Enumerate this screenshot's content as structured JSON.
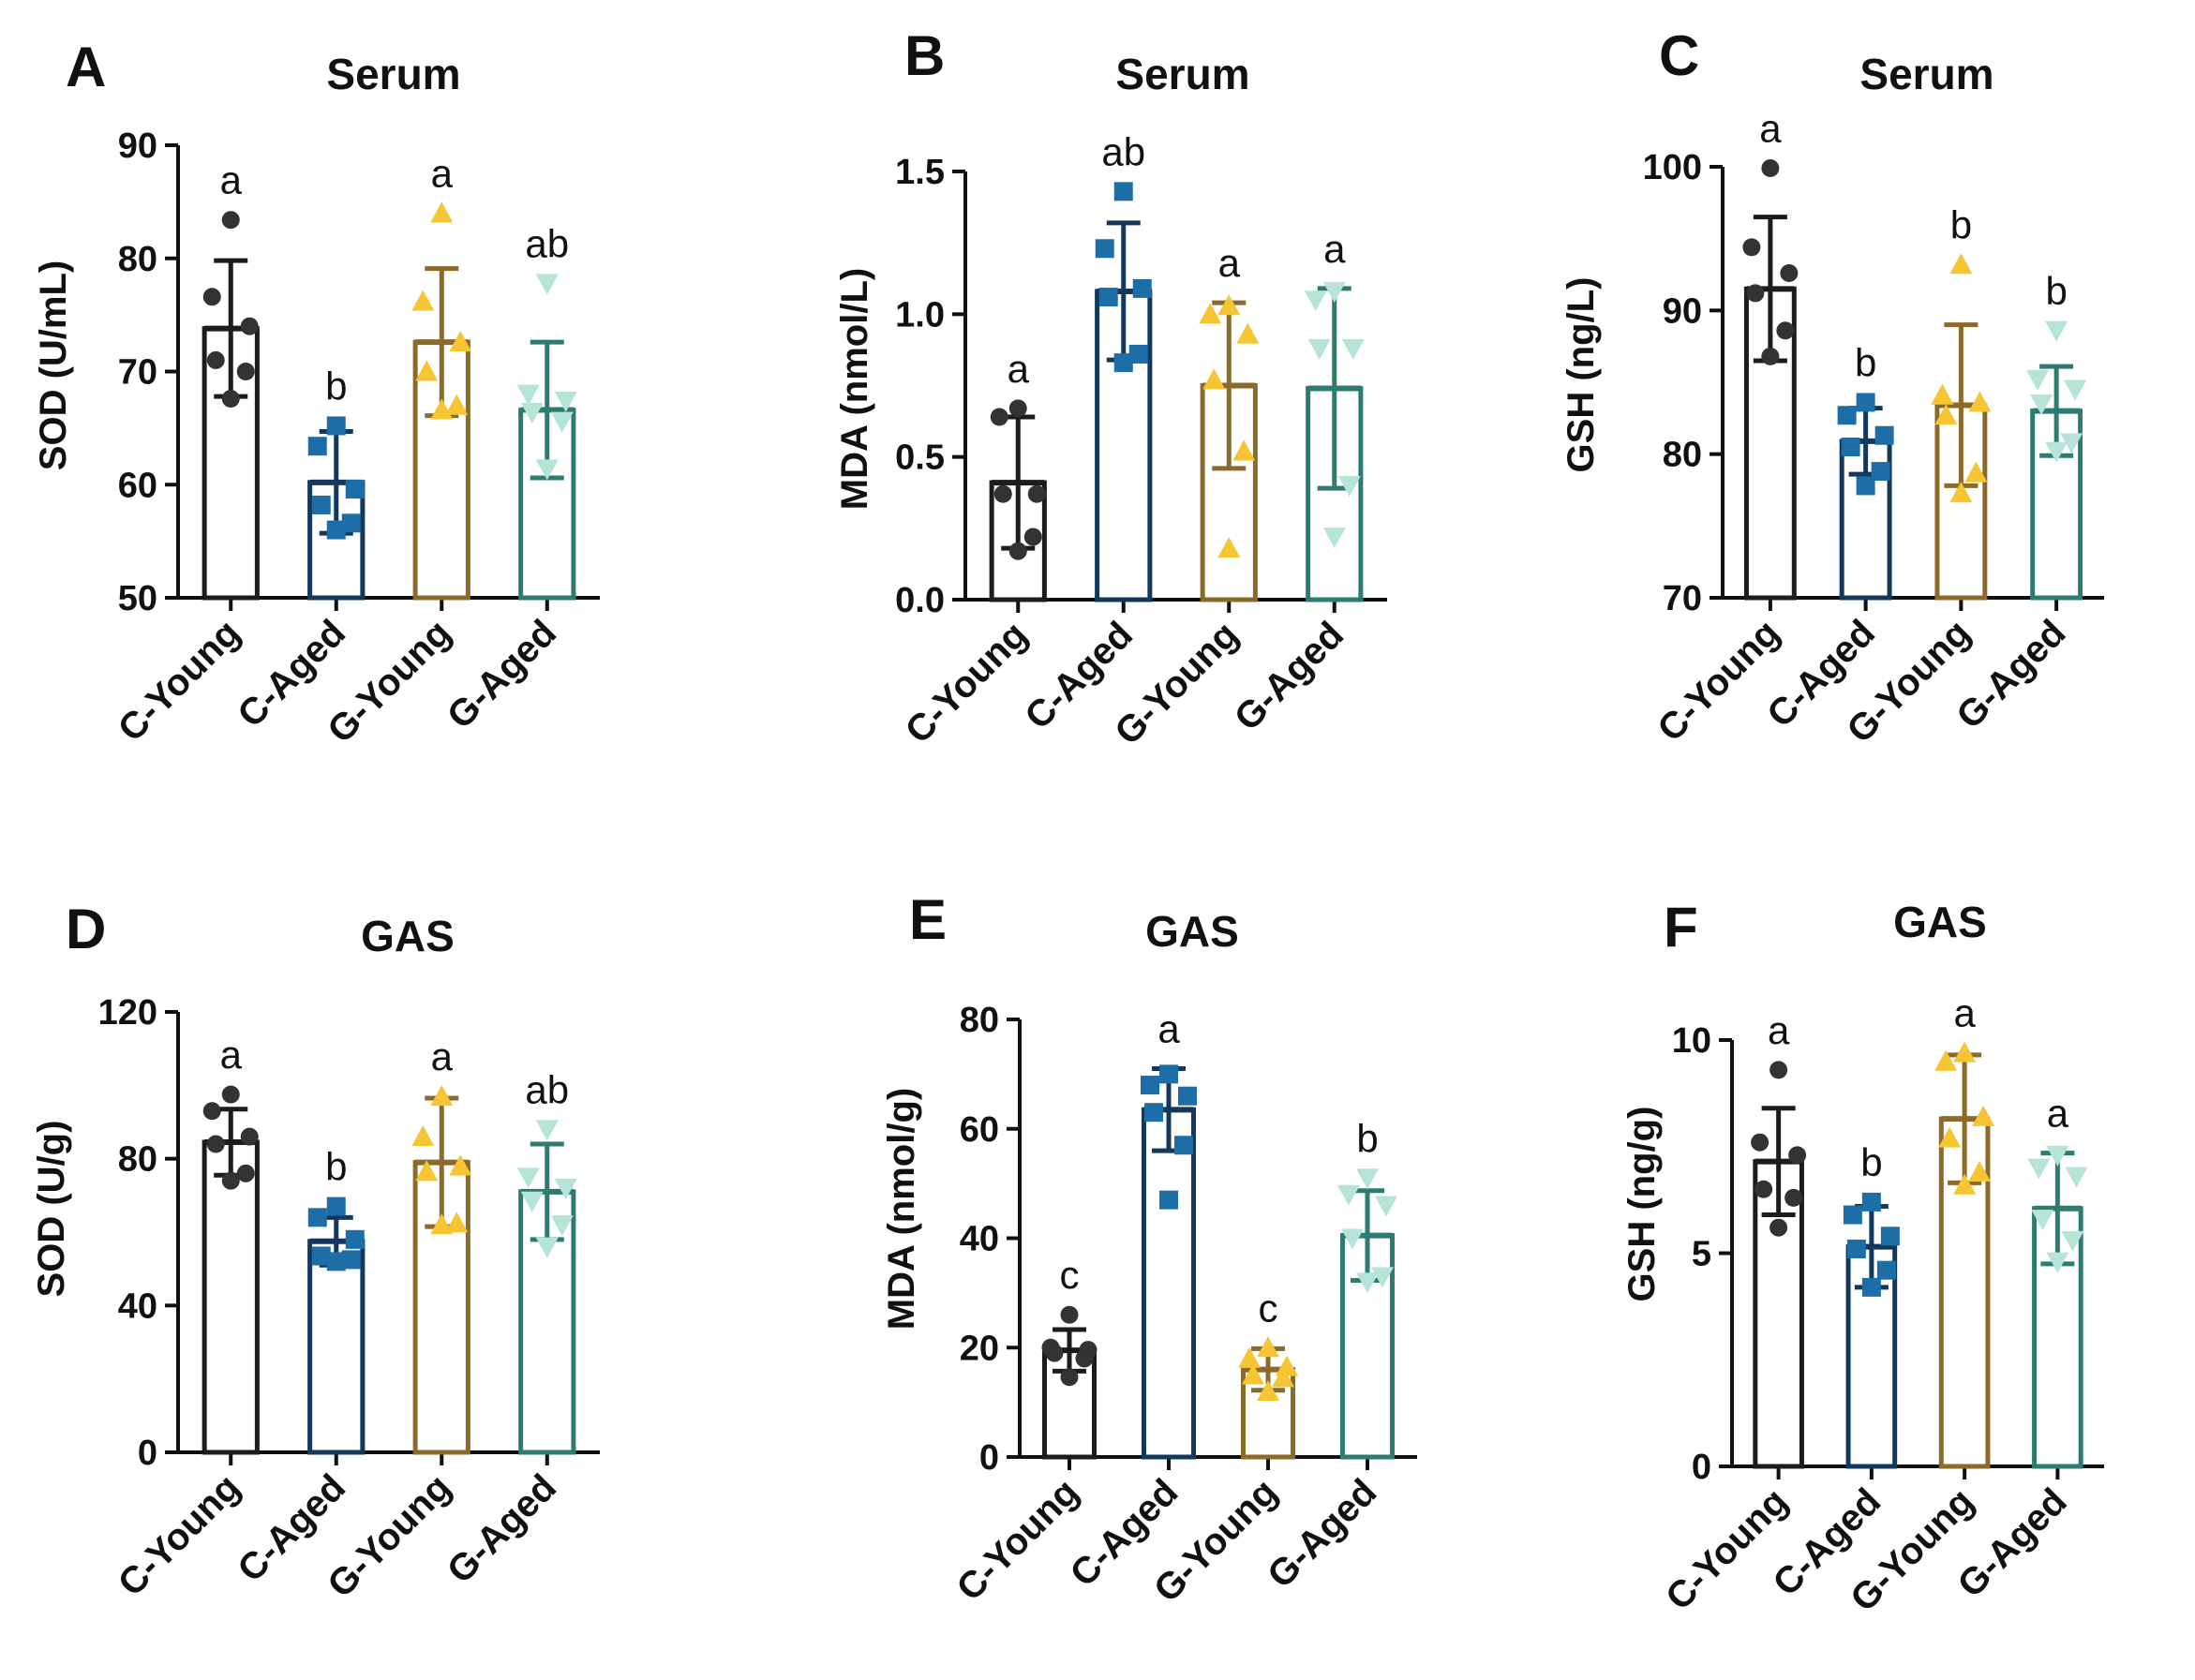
{
  "chart_data": [
    {
      "panel": "A",
      "title": "Serum",
      "ylabel": "SOD (U/mL)",
      "type": "bar",
      "ylim": [
        50,
        90
      ],
      "yticks": [
        50,
        60,
        70,
        80,
        90
      ],
      "ytick_labels": [
        "50",
        "60",
        "70",
        "80",
        "90"
      ],
      "categories": [
        "C-Young",
        "C-Aged",
        "G-Young",
        "G-Aged"
      ],
      "values": [
        73.8,
        60.2,
        72.6,
        66.6
      ],
      "errors": [
        6.0,
        4.5,
        6.5,
        6.0
      ],
      "letters": [
        "a",
        "b",
        "a",
        "ab"
      ],
      "points": [
        [
          83.4,
          76.6,
          74.0,
          71.0,
          70.0,
          67.6
        ],
        [
          65.2,
          63.4,
          59.6,
          58.2,
          56.6,
          56.0
        ],
        [
          84.0,
          76.2,
          72.6,
          70.0,
          67.0,
          66.6
        ],
        [
          77.8,
          68.0,
          67.4,
          66.4,
          65.6,
          61.4
        ]
      ]
    },
    {
      "panel": "B",
      "title": "Serum",
      "ylabel": "MDA (nmol/L)",
      "type": "bar",
      "ylim": [
        0,
        1.5
      ],
      "yticks": [
        0,
        0.5,
        1.0,
        1.5
      ],
      "ytick_labels": [
        "0.0",
        "0.5",
        "1.0",
        "1.5"
      ],
      "categories": [
        "C-Young",
        "C-Aged",
        "G-Young",
        "G-Aged"
      ],
      "values": [
        0.41,
        1.08,
        0.75,
        0.74
      ],
      "errors": [
        0.23,
        0.24,
        0.29,
        0.35
      ],
      "letters": [
        "a",
        "ab",
        "a",
        "a"
      ],
      "points": [
        [
          0.67,
          0.64,
          0.37,
          0.37,
          0.22,
          0.17
        ],
        [
          1.43,
          1.23,
          1.09,
          1.06,
          0.86,
          0.83
        ],
        [
          1.03,
          1.0,
          0.93,
          0.77,
          0.52,
          0.18
        ],
        [
          1.08,
          1.05,
          0.88,
          0.88,
          0.4,
          0.22
        ]
      ]
    },
    {
      "panel": "C",
      "title": "Serum",
      "ylabel": "GSH (ng/L)",
      "type": "bar",
      "ylim": [
        70,
        100
      ],
      "yticks": [
        70,
        80,
        90,
        100
      ],
      "ytick_labels": [
        "70",
        "80",
        "90",
        "100"
      ],
      "categories": [
        "C-Young",
        "C-Aged",
        "G-Young",
        "G-Aged"
      ],
      "values": [
        91.5,
        80.9,
        83.4,
        83.0
      ],
      "errors": [
        5.0,
        2.3,
        5.6,
        3.1
      ],
      "letters": [
        "a",
        "b",
        "b",
        "b"
      ],
      "points": [
        [
          99.9,
          94.4,
          92.6,
          91.2,
          88.6,
          86.8
        ],
        [
          83.6,
          82.7,
          81.3,
          80.5,
          78.8,
          77.8
        ],
        [
          93.2,
          84.1,
          83.6,
          82.7,
          78.7,
          77.3
        ],
        [
          88.6,
          85.2,
          84.5,
          83.5,
          80.8,
          80.2
        ]
      ]
    },
    {
      "panel": "D",
      "title": "GAS",
      "ylabel": "SOD (U/g)",
      "type": "bar",
      "ylim": [
        0,
        120
      ],
      "yticks": [
        0,
        40,
        80,
        120
      ],
      "ytick_labels": [
        "0",
        "40",
        "80",
        "120"
      ],
      "categories": [
        "C-Young",
        "C-Aged",
        "G-Young",
        "G-Aged"
      ],
      "values": [
        84.5,
        57.5,
        79.0,
        71.0
      ],
      "errors": [
        9.0,
        6.5,
        17.5,
        13.0
      ],
      "letters": [
        "a",
        "b",
        "a",
        "ab"
      ],
      "points": [
        [
          97.5,
          93.0,
          86.0,
          84.0,
          76.0,
          74.0
        ],
        [
          67.0,
          64.0,
          58.0,
          53.5,
          52.5,
          52.0
        ],
        [
          97.0,
          86.0,
          78.0,
          76.5,
          62.5,
          62.0
        ],
        [
          88.0,
          75.0,
          72.0,
          68.5,
          62.0,
          56.0
        ]
      ]
    },
    {
      "panel": "E",
      "title": "GAS",
      "ylabel": "MDA (nmol/g)",
      "type": "bar",
      "ylim": [
        0,
        80
      ],
      "yticks": [
        0,
        20,
        40,
        60,
        80
      ],
      "ytick_labels": [
        "0",
        "20",
        "40",
        "60",
        "80"
      ],
      "categories": [
        "C-Young",
        "C-Aged",
        "G-Young",
        "G-Aged"
      ],
      "values": [
        19.5,
        63.5,
        16.0,
        40.5
      ],
      "errors": [
        3.8,
        7.5,
        3.8,
        8.2
      ],
      "letters": [
        "c",
        "a",
        "c",
        "b"
      ],
      "points": [
        [
          26.0,
          20.0,
          19.6,
          19.0,
          18.0,
          14.6
        ],
        [
          70.0,
          68.0,
          66.0,
          63.0,
          57.0,
          47.0
        ],
        [
          20.0,
          18.0,
          16.5,
          15.0,
          14.5,
          12.0
        ],
        [
          51.0,
          48.0,
          46.0,
          40.0,
          33.0,
          32.0
        ]
      ]
    },
    {
      "panel": "F",
      "title": "GAS",
      "ylabel": "GSH (ng/g)",
      "type": "bar",
      "ylim": [
        0,
        10
      ],
      "yticks": [
        0,
        5,
        10
      ],
      "ytick_labels": [
        "0",
        "5",
        "10"
      ],
      "categories": [
        "C-Young",
        "C-Aged",
        "G-Young",
        "G-Aged"
      ],
      "values": [
        7.15,
        5.15,
        8.15,
        6.05
      ],
      "errors": [
        1.25,
        0.95,
        1.5,
        1.3
      ],
      "letters": [
        "a",
        "b",
        "a",
        "a"
      ],
      "points": [
        [
          9.3,
          7.6,
          7.3,
          6.5,
          6.3,
          5.6
        ],
        [
          6.2,
          5.9,
          5.4,
          5.1,
          4.6,
          4.2
        ],
        [
          9.7,
          9.5,
          8.2,
          7.7,
          6.9,
          6.6
        ],
        [
          7.3,
          7.0,
          6.8,
          5.8,
          5.3,
          4.8
        ]
      ]
    }
  ],
  "styles": {
    "series_colors": [
      "#1c1c1c",
      "#13385c",
      "#8c6a2a",
      "#2e7c70"
    ],
    "point_colors": [
      "#333333",
      "#1d6da7",
      "#f5c534",
      "#b6e4d6"
    ],
    "markers": [
      "circle",
      "square",
      "triangle-up",
      "triangle-down"
    ]
  }
}
